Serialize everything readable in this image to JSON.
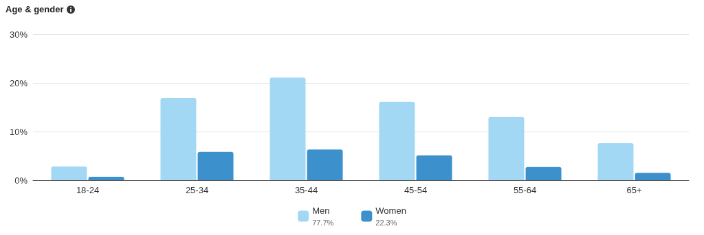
{
  "chart_data": {
    "type": "bar",
    "title": "Age & gender",
    "categories": [
      "18-24",
      "25-34",
      "35-44",
      "45-54",
      "55-64",
      "65+"
    ],
    "series": [
      {
        "name": "Men",
        "color": "#a3d8f5",
        "values": [
          2.8,
          16.9,
          21.1,
          16.1,
          13.0,
          7.6
        ]
      },
      {
        "name": "Women",
        "color": "#3c91cd",
        "values": [
          0.7,
          5.8,
          6.3,
          5.1,
          2.7,
          1.5
        ]
      }
    ],
    "ylim": [
      0,
      30
    ],
    "yticks": [
      {
        "value": 0,
        "label": "0%"
      },
      {
        "value": 10,
        "label": "10%"
      },
      {
        "value": 20,
        "label": "20%"
      },
      {
        "value": 30,
        "label": "30%"
      }
    ],
    "grid": "y",
    "legend": "bottom",
    "annotations": [
      "77.7%",
      "22.3%"
    ]
  }
}
